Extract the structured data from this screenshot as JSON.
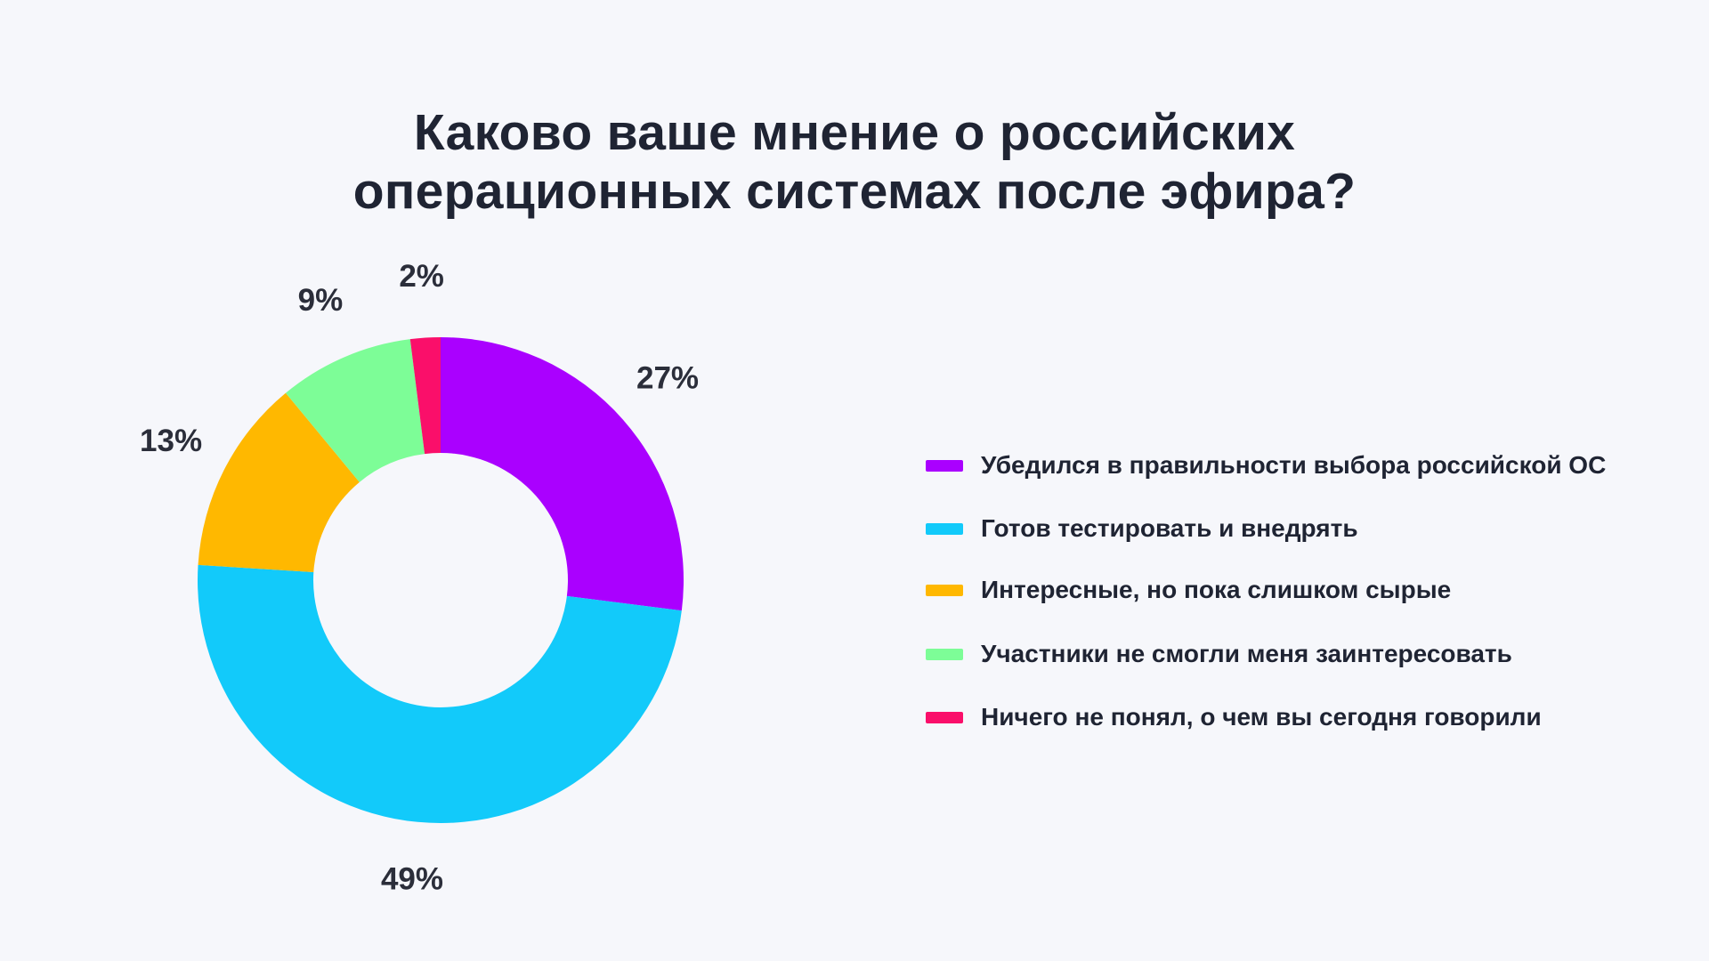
{
  "chart_data": {
    "type": "pie",
    "donut": true,
    "title": "Каково ваше мнение о российских операционных системах после эфира?",
    "title_lines": [
      "Каково ваше мнение о российских",
      "операционных системах после эфира?"
    ],
    "categories": [
      "Убедился в правильности выбора российской ОС",
      "Готов тестировать и внедрять",
      "Интересные, но пока слишком сырые",
      "Участники не смогли меня заинтересовать",
      "Ничего не понял, о чем вы сегодня говорили"
    ],
    "values": [
      27,
      49,
      13,
      9,
      2
    ],
    "value_labels": [
      "27%",
      "49%",
      "13%",
      "9%",
      "2%"
    ],
    "colors": [
      "#aa00ff",
      "#12cafa",
      "#ffb800",
      "#7dfd97",
      "#fa0f6a"
    ],
    "legend_position": "right"
  }
}
